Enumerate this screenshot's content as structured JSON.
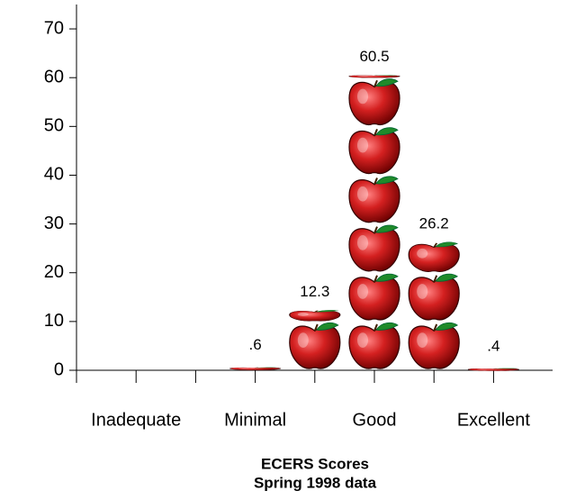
{
  "chart_data": {
    "type": "pictograph",
    "title": "ECERS Scores",
    "subtitle": "Spring 1998 data",
    "categories": [
      "Inadequate",
      null,
      "Minimal",
      null,
      "Good",
      null,
      "Excellent"
    ],
    "values": [
      0,
      0,
      0.6,
      12.3,
      60.5,
      26.2,
      0.4
    ],
    "value_labels": [
      null,
      null,
      ".6",
      "12.3",
      "60.5",
      "26.2",
      ".4"
    ],
    "color": "#d42020",
    "ylim": [
      0,
      75
    ],
    "yticks": [
      0,
      10,
      20,
      30,
      40,
      50,
      60,
      70
    ]
  }
}
